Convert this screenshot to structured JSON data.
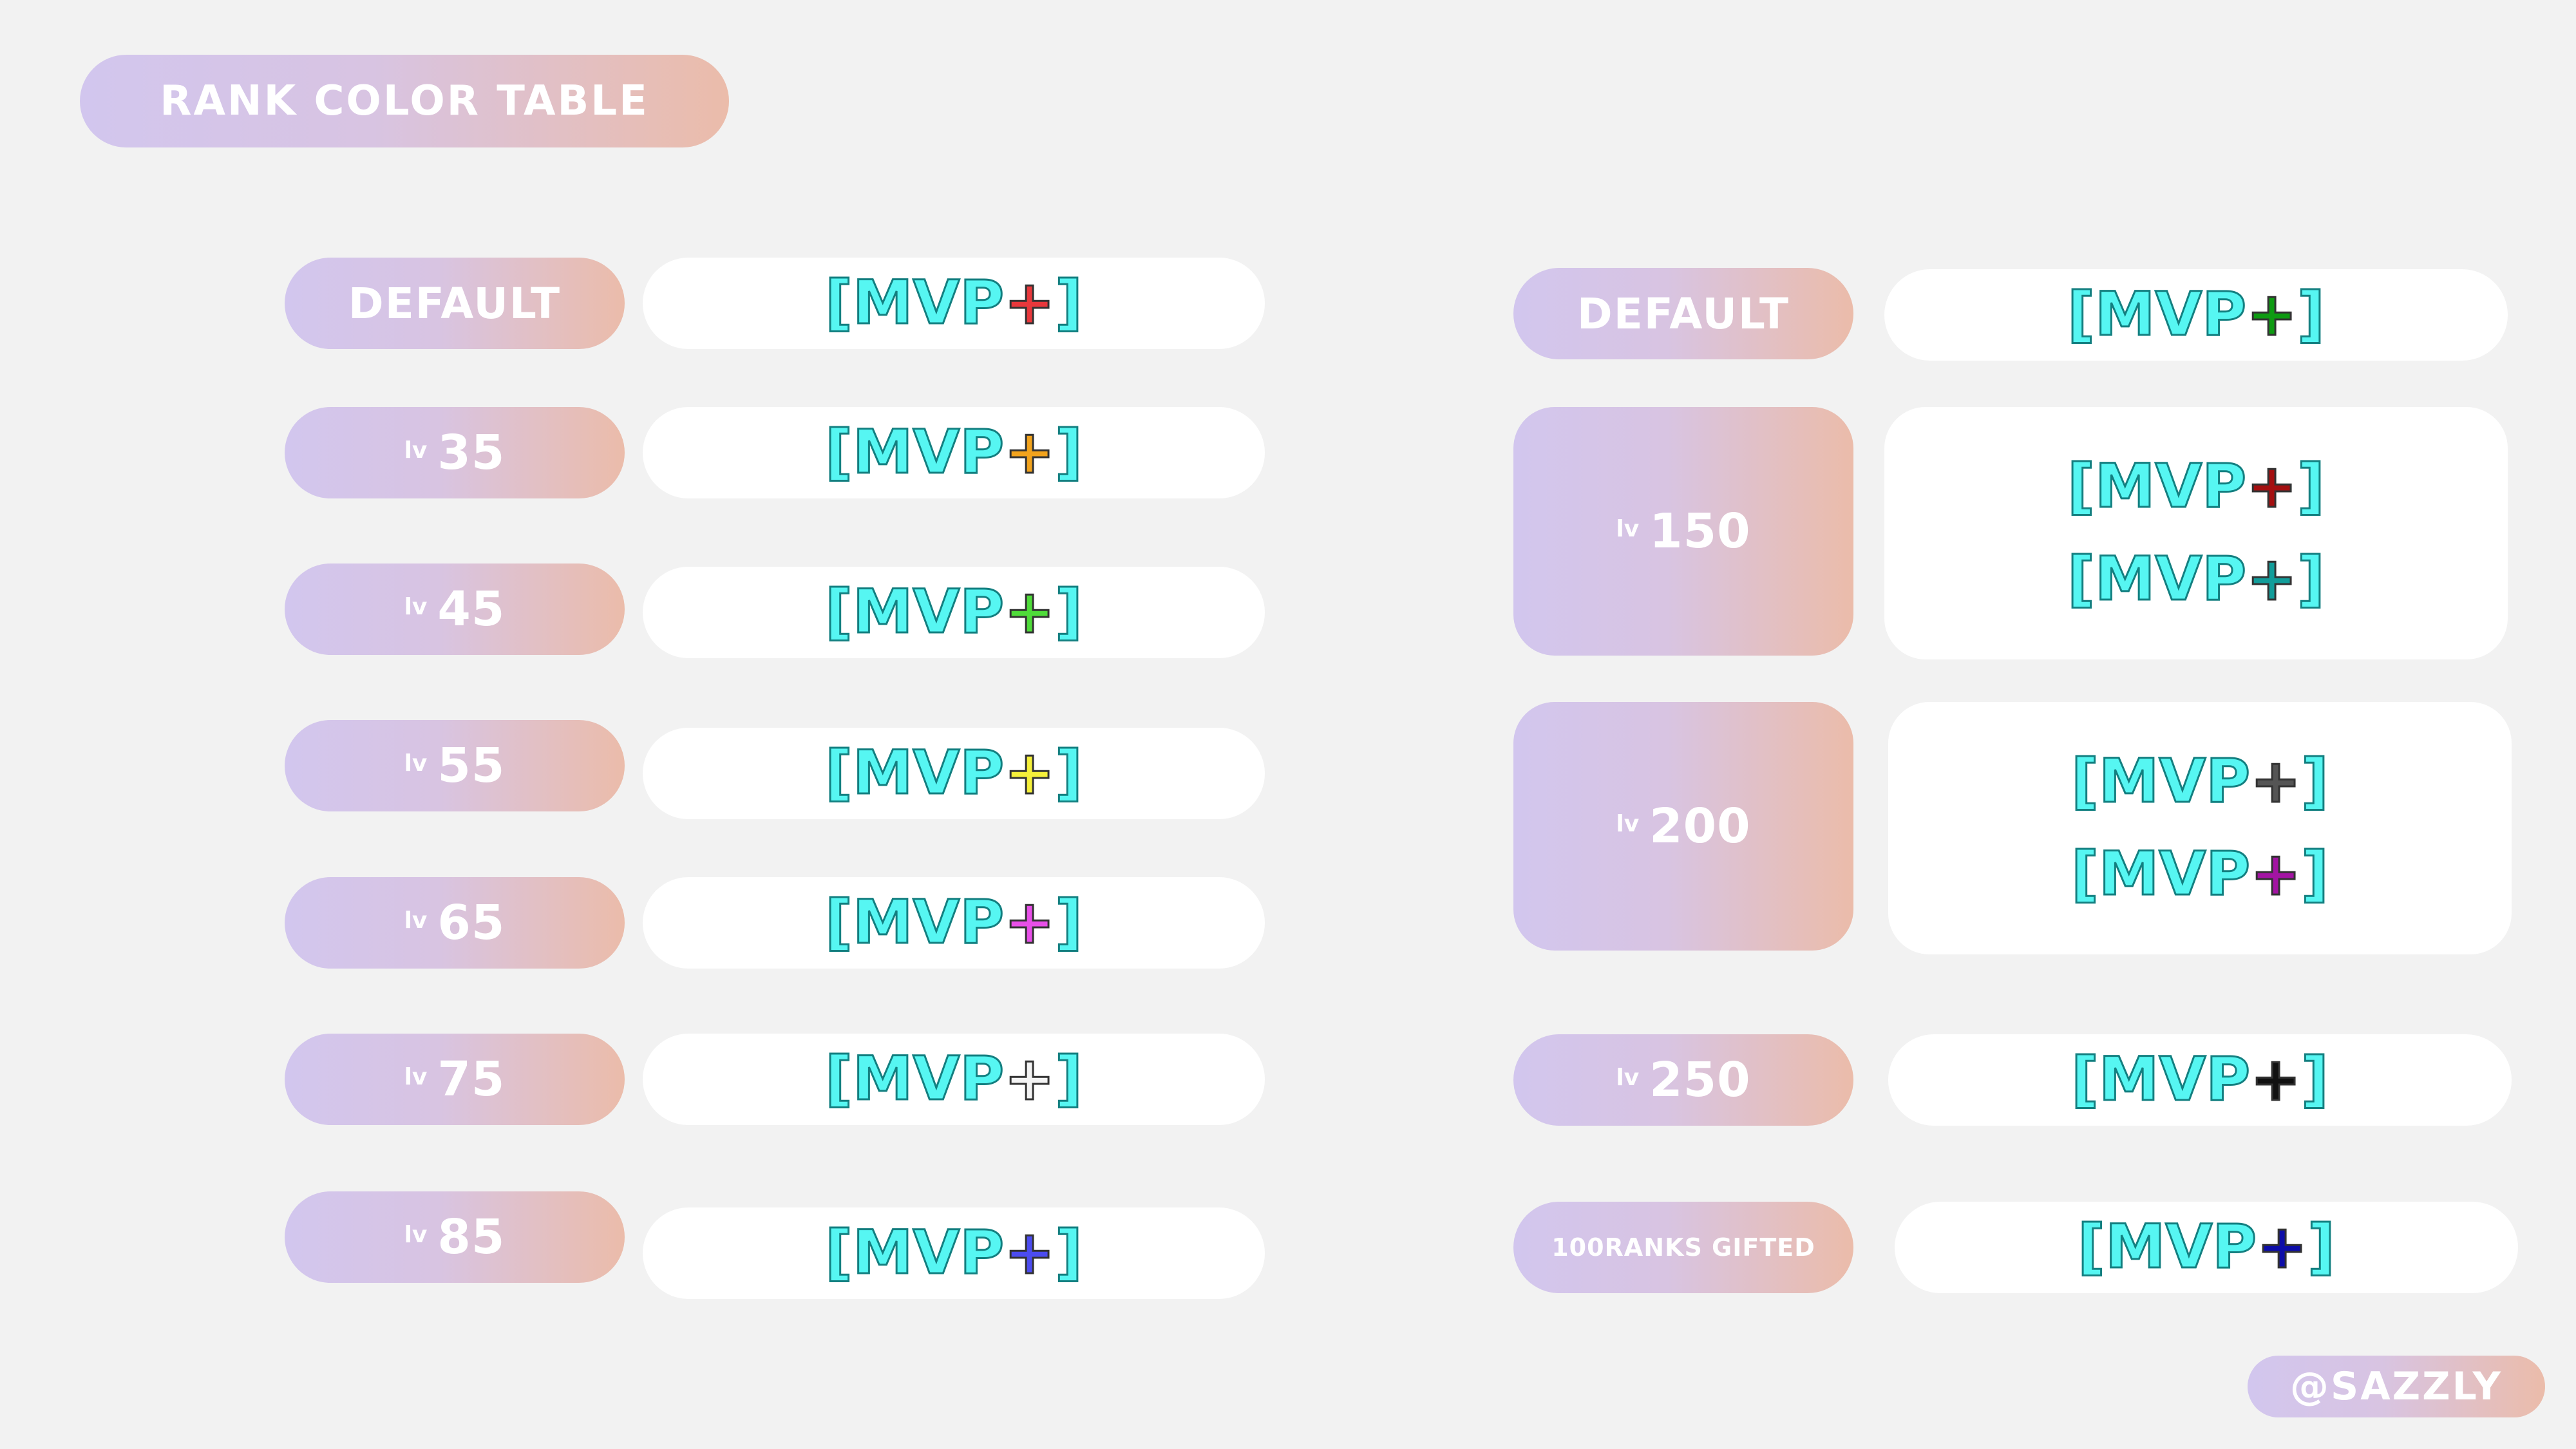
{
  "title": "RANK COLOR TABLE",
  "handle": "@SAZZLY",
  "lv_prefix": "lv",
  "tag": {
    "open": "[MVP",
    "close": "]",
    "plus": "+"
  },
  "left": [
    {
      "label": "DEFAULT",
      "plus_color": "#e8383c"
    },
    {
      "level": "35",
      "plus_color": "#f2a31d"
    },
    {
      "level": "45",
      "plus_color": "#4fdc3a"
    },
    {
      "level": "55",
      "plus_color": "#f5f03a"
    },
    {
      "level": "65",
      "plus_color": "#e84fe8"
    },
    {
      "level": "75",
      "plus_color": "#f4f4f4"
    },
    {
      "level": "85",
      "plus_color": "#4c4cf0"
    }
  ],
  "right": [
    {
      "label": "DEFAULT",
      "plus_colors": [
        "#0e9b12"
      ]
    },
    {
      "level": "150",
      "plus_colors": [
        "#a40f10",
        "#129d9a"
      ]
    },
    {
      "level": "200",
      "plus_colors": [
        "#555555",
        "#a314a3"
      ]
    },
    {
      "level": "250",
      "plus_colors": [
        "#111111"
      ]
    },
    {
      "label": "100RANKS GIFTED",
      "plus_colors": [
        "#0d0da8"
      ]
    }
  ]
}
